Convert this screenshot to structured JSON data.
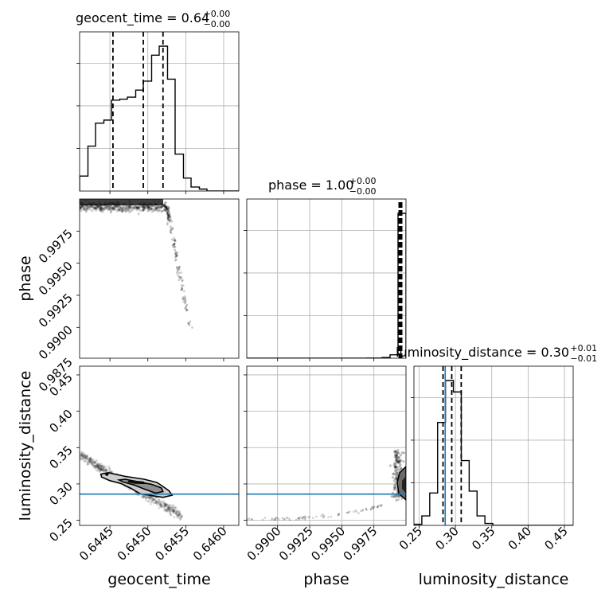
{
  "chart_data": {
    "type": "corner",
    "parameters": [
      "geocent_time",
      "phase",
      "luminosity_distance"
    ],
    "titles": [
      {
        "param": "geocent_time",
        "text": "geocent_time = 0.64",
        "sup": "+0.00",
        "sub": "−0.00"
      },
      {
        "param": "phase",
        "text": "phase = 1.00",
        "sup": "+0.00",
        "sub": "−0.00"
      },
      {
        "param": "luminosity_distance",
        "text": "luminosity_distance = 0.30",
        "sup": "+0.01",
        "sub": "−0.01"
      }
    ],
    "axis_labels": {
      "x": [
        "geocent_time",
        "phase",
        "luminosity_distance"
      ],
      "y": [
        "phase",
        "luminosity_distance"
      ]
    },
    "ranges": {
      "geocent_time": [
        0.6441,
        0.6462
      ],
      "phase": [
        0.9876,
        1.0
      ],
      "luminosity_distance": [
        0.243,
        0.462
      ]
    },
    "ticks": {
      "geocent_time": {
        "values": [
          0.6445,
          0.645,
          0.6455,
          0.646
        ],
        "labels": [
          "0.6445",
          "0.6450",
          "0.6455",
          "0.6460"
        ]
      },
      "phase": {
        "values": [
          0.9875,
          0.99,
          0.9925,
          0.995,
          0.9975
        ],
        "labels": [
          "0.9875",
          "0.9900",
          "0.9925",
          "0.9950",
          "0.9975"
        ]
      },
      "luminosity_distance": {
        "values": [
          0.25,
          0.3,
          0.35,
          0.4,
          0.45
        ],
        "labels": [
          "0.25",
          "0.30",
          "0.35",
          "0.40",
          "0.45"
        ]
      }
    },
    "injection": {
      "luminosity_distance": 0.286,
      "color": "#1f77b4"
    },
    "quantiles": {
      "geocent_time": [
        0.64454,
        0.64494,
        0.6452
      ],
      "luminosity_distance": [
        0.283,
        0.295,
        0.308
      ]
    },
    "histograms": {
      "geocent_time": {
        "edges": [
          0.6441,
          0.64421,
          0.64431,
          0.64442,
          0.64452,
          0.64463,
          0.64473,
          0.64484,
          0.64494,
          0.64505,
          0.64515,
          0.64526,
          0.64536,
          0.64547,
          0.64557,
          0.64568,
          0.64578,
          0.64589,
          0.64599,
          0.6461,
          0.6462
        ],
        "counts": [
          1.5,
          4.5,
          6.8,
          7.1,
          9.1,
          9.2,
          9.4,
          10.1,
          11.0,
          13.6,
          14.5,
          11.2,
          3.7,
          1.3,
          0.4,
          0.2,
          0,
          0,
          0,
          0
        ]
      },
      "phase": {
        "edges": [
          0.9876,
          0.98822,
          0.98884,
          0.98946,
          0.99008,
          0.9907,
          0.99132,
          0.99194,
          0.99256,
          0.99318,
          0.9938,
          0.99442,
          0.99504,
          0.99566,
          0.99628,
          0.9969,
          0.99752,
          0.99814,
          0.99876,
          0.99938,
          1.0
        ],
        "counts": [
          0,
          0,
          0,
          0,
          0,
          0,
          0,
          0,
          0,
          0,
          0,
          0,
          0,
          0,
          0,
          0.1,
          0.15,
          0.7,
          3.3,
          140
        ]
      },
      "luminosity_distance": {
        "edges": [
          0.243,
          0.25385,
          0.2647,
          0.27555,
          0.2864,
          0.29725,
          0.3081,
          0.31895,
          0.3298,
          0.34065,
          0.3515,
          0.36235,
          0.3732,
          0.38405,
          0.3949,
          0.40575,
          0.4166,
          0.42745,
          0.4383,
          0.44915,
          0.462
        ],
        "counts": [
          0.3,
          2.5,
          8.5,
          27,
          38,
          35,
          17,
          9,
          2.5,
          0.5,
          0,
          0,
          0,
          0,
          0,
          0,
          0,
          0,
          0,
          0
        ]
      }
    },
    "contours": {
      "geocent_time_vs_luminosity_distance": {
        "levels": [
          [
            [
              0.64448,
              0.3155
            ],
            [
              0.6447,
              0.3105
            ],
            [
              0.64495,
              0.3065
            ],
            [
              0.64512,
              0.302
            ],
            [
              0.6452,
              0.2965
            ],
            [
              0.64528,
              0.2905
            ],
            [
              0.64532,
              0.2845
            ],
            [
              0.6452,
              0.2815
            ],
            [
              0.6449,
              0.2865
            ],
            [
              0.64478,
              0.2938
            ],
            [
              0.64465,
              0.3005
            ],
            [
              0.6445,
              0.3045
            ],
            [
              0.64439,
              0.3095
            ],
            [
              0.64438,
              0.3135
            ],
            [
              0.64448,
              0.3155
            ]
          ],
          [
            [
              0.6447,
              0.3065
            ],
            [
              0.64485,
              0.3035
            ],
            [
              0.64505,
              0.2995
            ],
            [
              0.64518,
              0.2945
            ],
            [
              0.6452,
              0.2895
            ],
            [
              0.6451,
              0.2875
            ],
            [
              0.64494,
              0.2935
            ],
            [
              0.64482,
              0.2985
            ],
            [
              0.64468,
              0.3025
            ],
            [
              0.64462,
              0.3055
            ],
            [
              0.6447,
              0.3065
            ]
          ],
          [
            [
              0.64478,
              0.3042
            ],
            [
              0.64494,
              0.3025
            ],
            [
              0.64496,
              0.3008
            ],
            [
              0.64482,
              0.3012
            ],
            [
              0.64474,
              0.3032
            ],
            [
              0.64478,
              0.3042
            ]
          ]
        ]
      }
    }
  }
}
